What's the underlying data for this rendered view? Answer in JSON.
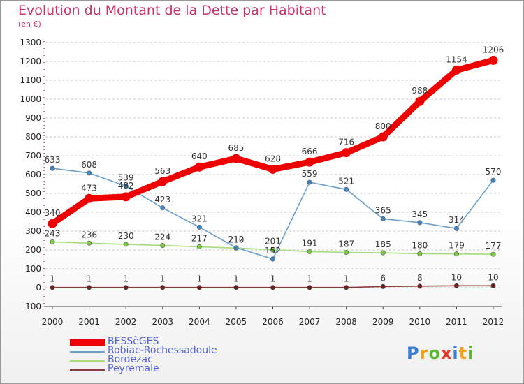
{
  "title": "Evolution du Montant de la Dette par Habitant",
  "subtitle": "(en €)",
  "colors": {
    "title": "#c8346b",
    "grid": "#c8c8c8",
    "legend_text": "#5561d6"
  },
  "logo": {
    "letters": [
      "P",
      "r",
      "o",
      "x",
      "i",
      "t",
      "i"
    ],
    "colors": [
      "#3a7fd5",
      "#f2a11a",
      "#5fb336",
      "#e53a2b",
      "#3a7fd5",
      "#f2a11a",
      "#5fb336"
    ]
  },
  "chart_data": {
    "type": "line",
    "title": "Evolution du Montant de la Dette par Habitant",
    "subtitle": "(en €)",
    "x": [
      "2000",
      "2001",
      "2002",
      "2003",
      "2004",
      "2005",
      "2006",
      "2007",
      "2008",
      "2009",
      "2010",
      "2011",
      "2012"
    ],
    "yticks": [
      "1300",
      "1200",
      "1100",
      "1000",
      "900",
      "800",
      "700",
      "600",
      "500",
      "400",
      "300",
      "200",
      "100",
      "0",
      "-100"
    ],
    "ylim": [
      -100,
      1300
    ],
    "grid": "horizontal dashed",
    "legend_position": "bottom-left",
    "series": [
      {
        "name": "BESSèGES",
        "color": "#ee0000",
        "marker_color": "#ee0000",
        "thickness": "thick",
        "values": [
          340,
          473,
          482,
          563,
          640,
          685,
          628,
          666,
          716,
          800,
          988,
          1154,
          1206
        ],
        "labels": [
          "340",
          "473",
          "",
          "563",
          "640",
          "685",
          "628",
          "666",
          "716",
          "800",
          "988",
          "1154",
          "1206"
        ]
      },
      {
        "name": "Robiac-Rochessadoule",
        "color": "#6aa0cc",
        "marker_color": "#3d84c6",
        "thickness": "thin",
        "values": [
          633,
          608,
          539,
          423,
          321,
          212,
          152,
          559,
          521,
          365,
          345,
          314,
          570
        ],
        "labels": [
          "633",
          "608",
          "539",
          "423",
          "321",
          "212",
          "152",
          "559",
          "521",
          "365",
          "345",
          "314",
          "570"
        ]
      },
      {
        "name": "Bordezac",
        "color": "#a6dd7c",
        "marker_color": "#7cc943",
        "thickness": "thin",
        "values": [
          243,
          236,
          230,
          224,
          217,
          210,
          201,
          191,
          187,
          185,
          180,
          179,
          177
        ],
        "labels": [
          "243",
          "236",
          "230",
          "224",
          "217",
          "210",
          "201",
          "191",
          "187",
          "185",
          "180",
          "179",
          "177"
        ]
      },
      {
        "name": "Peyremale",
        "color": "#8a3a3a",
        "marker_color": "#6b1f1f",
        "thickness": "thin",
        "values": [
          1,
          1,
          1,
          1,
          1,
          1,
          1,
          1,
          1,
          6,
          8,
          10,
          10
        ],
        "labels": [
          "1",
          "1",
          "1",
          "1",
          "1",
          "1",
          "1",
          "1",
          "1",
          "6",
          "8",
          "10",
          "10"
        ]
      }
    ],
    "extra_labels": [
      {
        "series": "BESSèGES",
        "text": "482",
        "x": "2002",
        "y": 482
      }
    ]
  }
}
